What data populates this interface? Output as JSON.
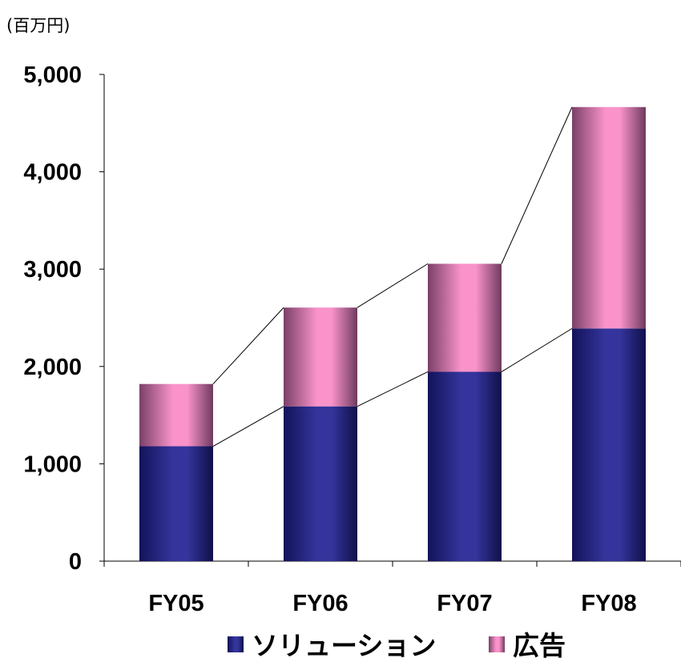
{
  "chart_data": {
    "type": "bar",
    "stacked": true,
    "unit_label": "(百万円)",
    "categories": [
      "FY05",
      "FY06",
      "FY07",
      "FY08"
    ],
    "series": [
      {
        "name": "ソリューション",
        "values": [
          1180,
          1590,
          1945,
          2390
        ],
        "color": "#33339a"
      },
      {
        "name": "広告",
        "values": [
          640,
          1015,
          1110,
          2275
        ],
        "color": "#f791c9"
      }
    ],
    "ylim": [
      0,
      5000
    ],
    "yticks": [
      0,
      1000,
      2000,
      3000,
      4000,
      5000
    ],
    "ytick_labels": [
      "0",
      "1,000",
      "2,000",
      "3,000",
      "4,000",
      "5,000"
    ],
    "grid": false,
    "connector_lines": true,
    "legend_position": "bottom"
  }
}
